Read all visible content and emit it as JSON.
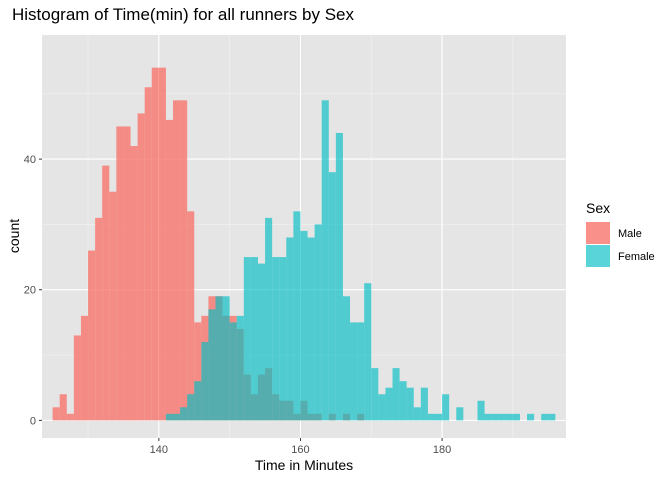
{
  "chart_data": {
    "type": "histogram",
    "title": "Histogram of Time(min) for all runners by Sex",
    "xlabel": "Time in Minutes",
    "ylabel": "count",
    "xlim": [
      123.5,
      197.5
    ],
    "ylim": [
      -2.7,
      59
    ],
    "bin_width": 1,
    "x_ticks": [
      140,
      160,
      180
    ],
    "y_ticks": [
      0,
      20,
      40
    ],
    "grid": true,
    "background": "#e5e5e5",
    "legend": {
      "title": "Sex",
      "position": "right",
      "entries": [
        {
          "label": "Male",
          "color": "#f8766d"
        },
        {
          "label": "Female",
          "color": "#00bfc4"
        }
      ]
    },
    "series": [
      {
        "name": "Male",
        "color": "#f8766d",
        "bin_starts": [
          125,
          126,
          127,
          128,
          129,
          130,
          131,
          132,
          133,
          134,
          135,
          136,
          137,
          138,
          139,
          140,
          141,
          142,
          143,
          144,
          145,
          146,
          147,
          148,
          149,
          150,
          151,
          152,
          153,
          154,
          155,
          156,
          157,
          158,
          159,
          160,
          161,
          162,
          163,
          164,
          165,
          166,
          167,
          168,
          169
        ],
        "counts": [
          2,
          4,
          1,
          13,
          16,
          26,
          31,
          39,
          35,
          45,
          45,
          42,
          47,
          51,
          54,
          54,
          46,
          49,
          49,
          32,
          15,
          16,
          19,
          19,
          16,
          16,
          14,
          7,
          4,
          7,
          8,
          4,
          3,
          3,
          1,
          3,
          1,
          1,
          0,
          1,
          0,
          1,
          0,
          1,
          0
        ]
      },
      {
        "name": "Female",
        "color": "#00bfc4",
        "bin_starts": [
          141,
          142,
          143,
          144,
          145,
          146,
          147,
          148,
          149,
          150,
          151,
          152,
          153,
          154,
          155,
          156,
          157,
          158,
          159,
          160,
          161,
          162,
          163,
          164,
          165,
          166,
          167,
          168,
          169,
          170,
          171,
          172,
          173,
          174,
          175,
          176,
          177,
          178,
          179,
          180,
          181,
          182,
          183,
          184,
          185,
          186,
          187,
          188,
          189,
          190,
          191,
          192,
          193,
          194,
          195
        ],
        "counts": [
          1,
          1,
          2,
          4,
          6,
          12,
          17,
          19,
          19,
          15,
          16,
          25,
          25,
          24,
          31,
          25,
          25,
          28,
          32,
          29,
          28,
          30,
          49,
          38,
          44,
          19,
          15,
          15,
          21,
          8,
          4,
          5,
          8,
          6,
          5,
          2,
          5,
          1,
          1,
          4,
          0,
          2,
          0,
          0,
          3,
          1,
          1,
          1,
          1,
          1,
          0,
          1,
          0,
          1,
          1
        ]
      }
    ]
  }
}
